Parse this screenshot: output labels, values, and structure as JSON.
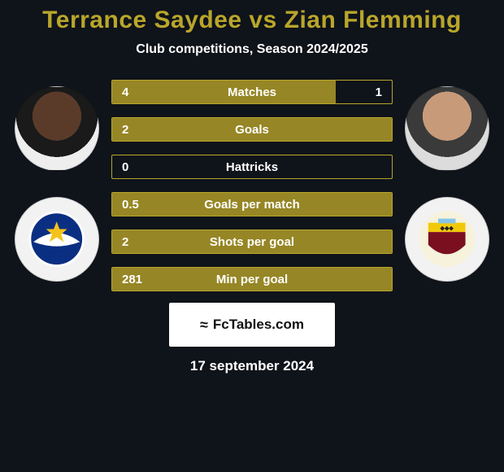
{
  "background_color": "#0f131a",
  "title": {
    "text": "Terrance Saydee vs Zian Flemming",
    "color": "#b9a62a",
    "font_size": 30
  },
  "subtitle": {
    "text": "Club competitions, Season 2024/2025",
    "font_size": 16
  },
  "players": {
    "left": {
      "name": "Terrance Saydee"
    },
    "right": {
      "name": "Zian Flemming"
    }
  },
  "crests": {
    "left": {
      "name": "club-crest-left",
      "bg": "#f2f2f2",
      "primary": "#0a2f82",
      "accent": "#f4c21a"
    },
    "right": {
      "name": "club-crest-right",
      "bg": "#f6f2dc",
      "primary": "#7a0f20",
      "accent": "#f2c90a",
      "ribbon": "#86c5e8"
    }
  },
  "bars": {
    "accent_color": "#b9a62a",
    "fill_color": "#968625",
    "border_color": "#b9a62a",
    "empty_text_color": "#ffffff",
    "items": [
      {
        "label": "Matches",
        "left": "4",
        "right": "1",
        "fill_pct": 80,
        "show_right": true
      },
      {
        "label": "Goals",
        "left": "2",
        "right": "",
        "fill_pct": 100,
        "show_right": false
      },
      {
        "label": "Hattricks",
        "left": "0",
        "right": "",
        "fill_pct": 0,
        "show_right": false
      },
      {
        "label": "Goals per match",
        "left": "0.5",
        "right": "",
        "fill_pct": 100,
        "show_right": false
      },
      {
        "label": "Shots per goal",
        "left": "2",
        "right": "",
        "fill_pct": 100,
        "show_right": false
      },
      {
        "label": "Min per goal",
        "left": "281",
        "right": "",
        "fill_pct": 100,
        "show_right": false
      }
    ]
  },
  "fctables": {
    "bg": "#ffffff",
    "text": "FcTables.com",
    "text_color": "#111111",
    "icon": "≈",
    "font_size": 17
  },
  "date": {
    "text": "17 september 2024",
    "font_size": 17
  }
}
